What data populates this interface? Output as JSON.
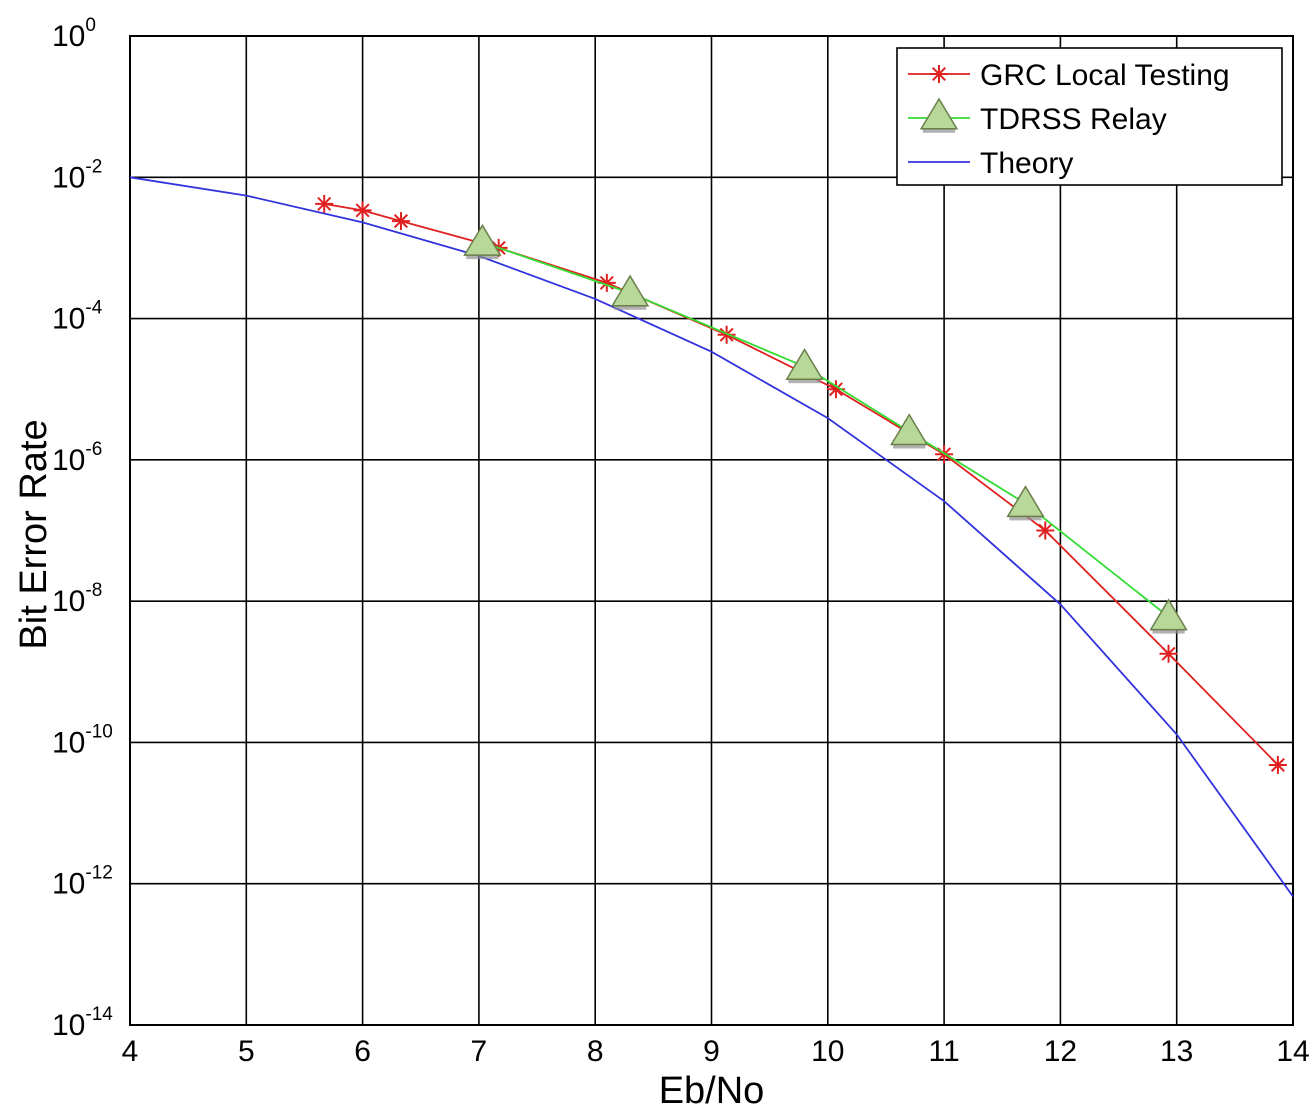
{
  "chart_data": {
    "type": "line",
    "xlabel": "Eb/No",
    "ylabel": "Bit Error Rate",
    "xlim": [
      4,
      14
    ],
    "ylim": [
      1e-14,
      1
    ],
    "yscale": "log",
    "grid": true,
    "legend_position": "top-right",
    "xticks": [
      4,
      5,
      6,
      7,
      8,
      9,
      10,
      11,
      12,
      13,
      14
    ],
    "yticks": [
      {
        "base": "10",
        "exp": "0"
      },
      {
        "base": "10",
        "exp": "-2"
      },
      {
        "base": "10",
        "exp": "-4"
      },
      {
        "base": "10",
        "exp": "-6"
      },
      {
        "base": "10",
        "exp": "-8"
      },
      {
        "base": "10",
        "exp": "-10"
      },
      {
        "base": "10",
        "exp": "-12"
      },
      {
        "base": "10",
        "exp": "-14"
      }
    ],
    "series": [
      {
        "name": "GRC Local Testing",
        "color": "#e02020",
        "marker": "asterisk",
        "x": [
          5.67,
          6.0,
          6.33,
          7.17,
          8.1,
          9.13,
          10.07,
          11.0,
          11.87,
          12.93,
          13.87
        ],
        "y": [
          0.0042,
          0.0034,
          0.0024,
          0.001,
          0.00032,
          5.9e-05,
          1e-05,
          1.2e-06,
          1e-07,
          1.8e-09,
          4.8e-11
        ]
      },
      {
        "name": "TDRSS Relay",
        "color": "#33dd33",
        "marker": "triangle",
        "marker_fill": "#b8d89a",
        "x": [
          7.03,
          8.3,
          9.8,
          10.7,
          11.7,
          12.93
        ],
        "y": [
          0.0012,
          0.00023,
          2.1e-05,
          2.5e-06,
          2.4e-07,
          6e-09
        ]
      },
      {
        "name": "Theory",
        "color": "#3333dd",
        "marker": "none",
        "x": [
          4,
          5,
          6,
          7,
          8,
          9,
          10,
          11,
          12,
          13,
          14
        ],
        "y": [
          0.01,
          0.0055,
          0.0023,
          0.00077,
          0.00019,
          3.4e-05,
          3.9e-06,
          2.6e-07,
          9e-09,
          1.3e-10,
          6.6e-13
        ]
      }
    ]
  }
}
